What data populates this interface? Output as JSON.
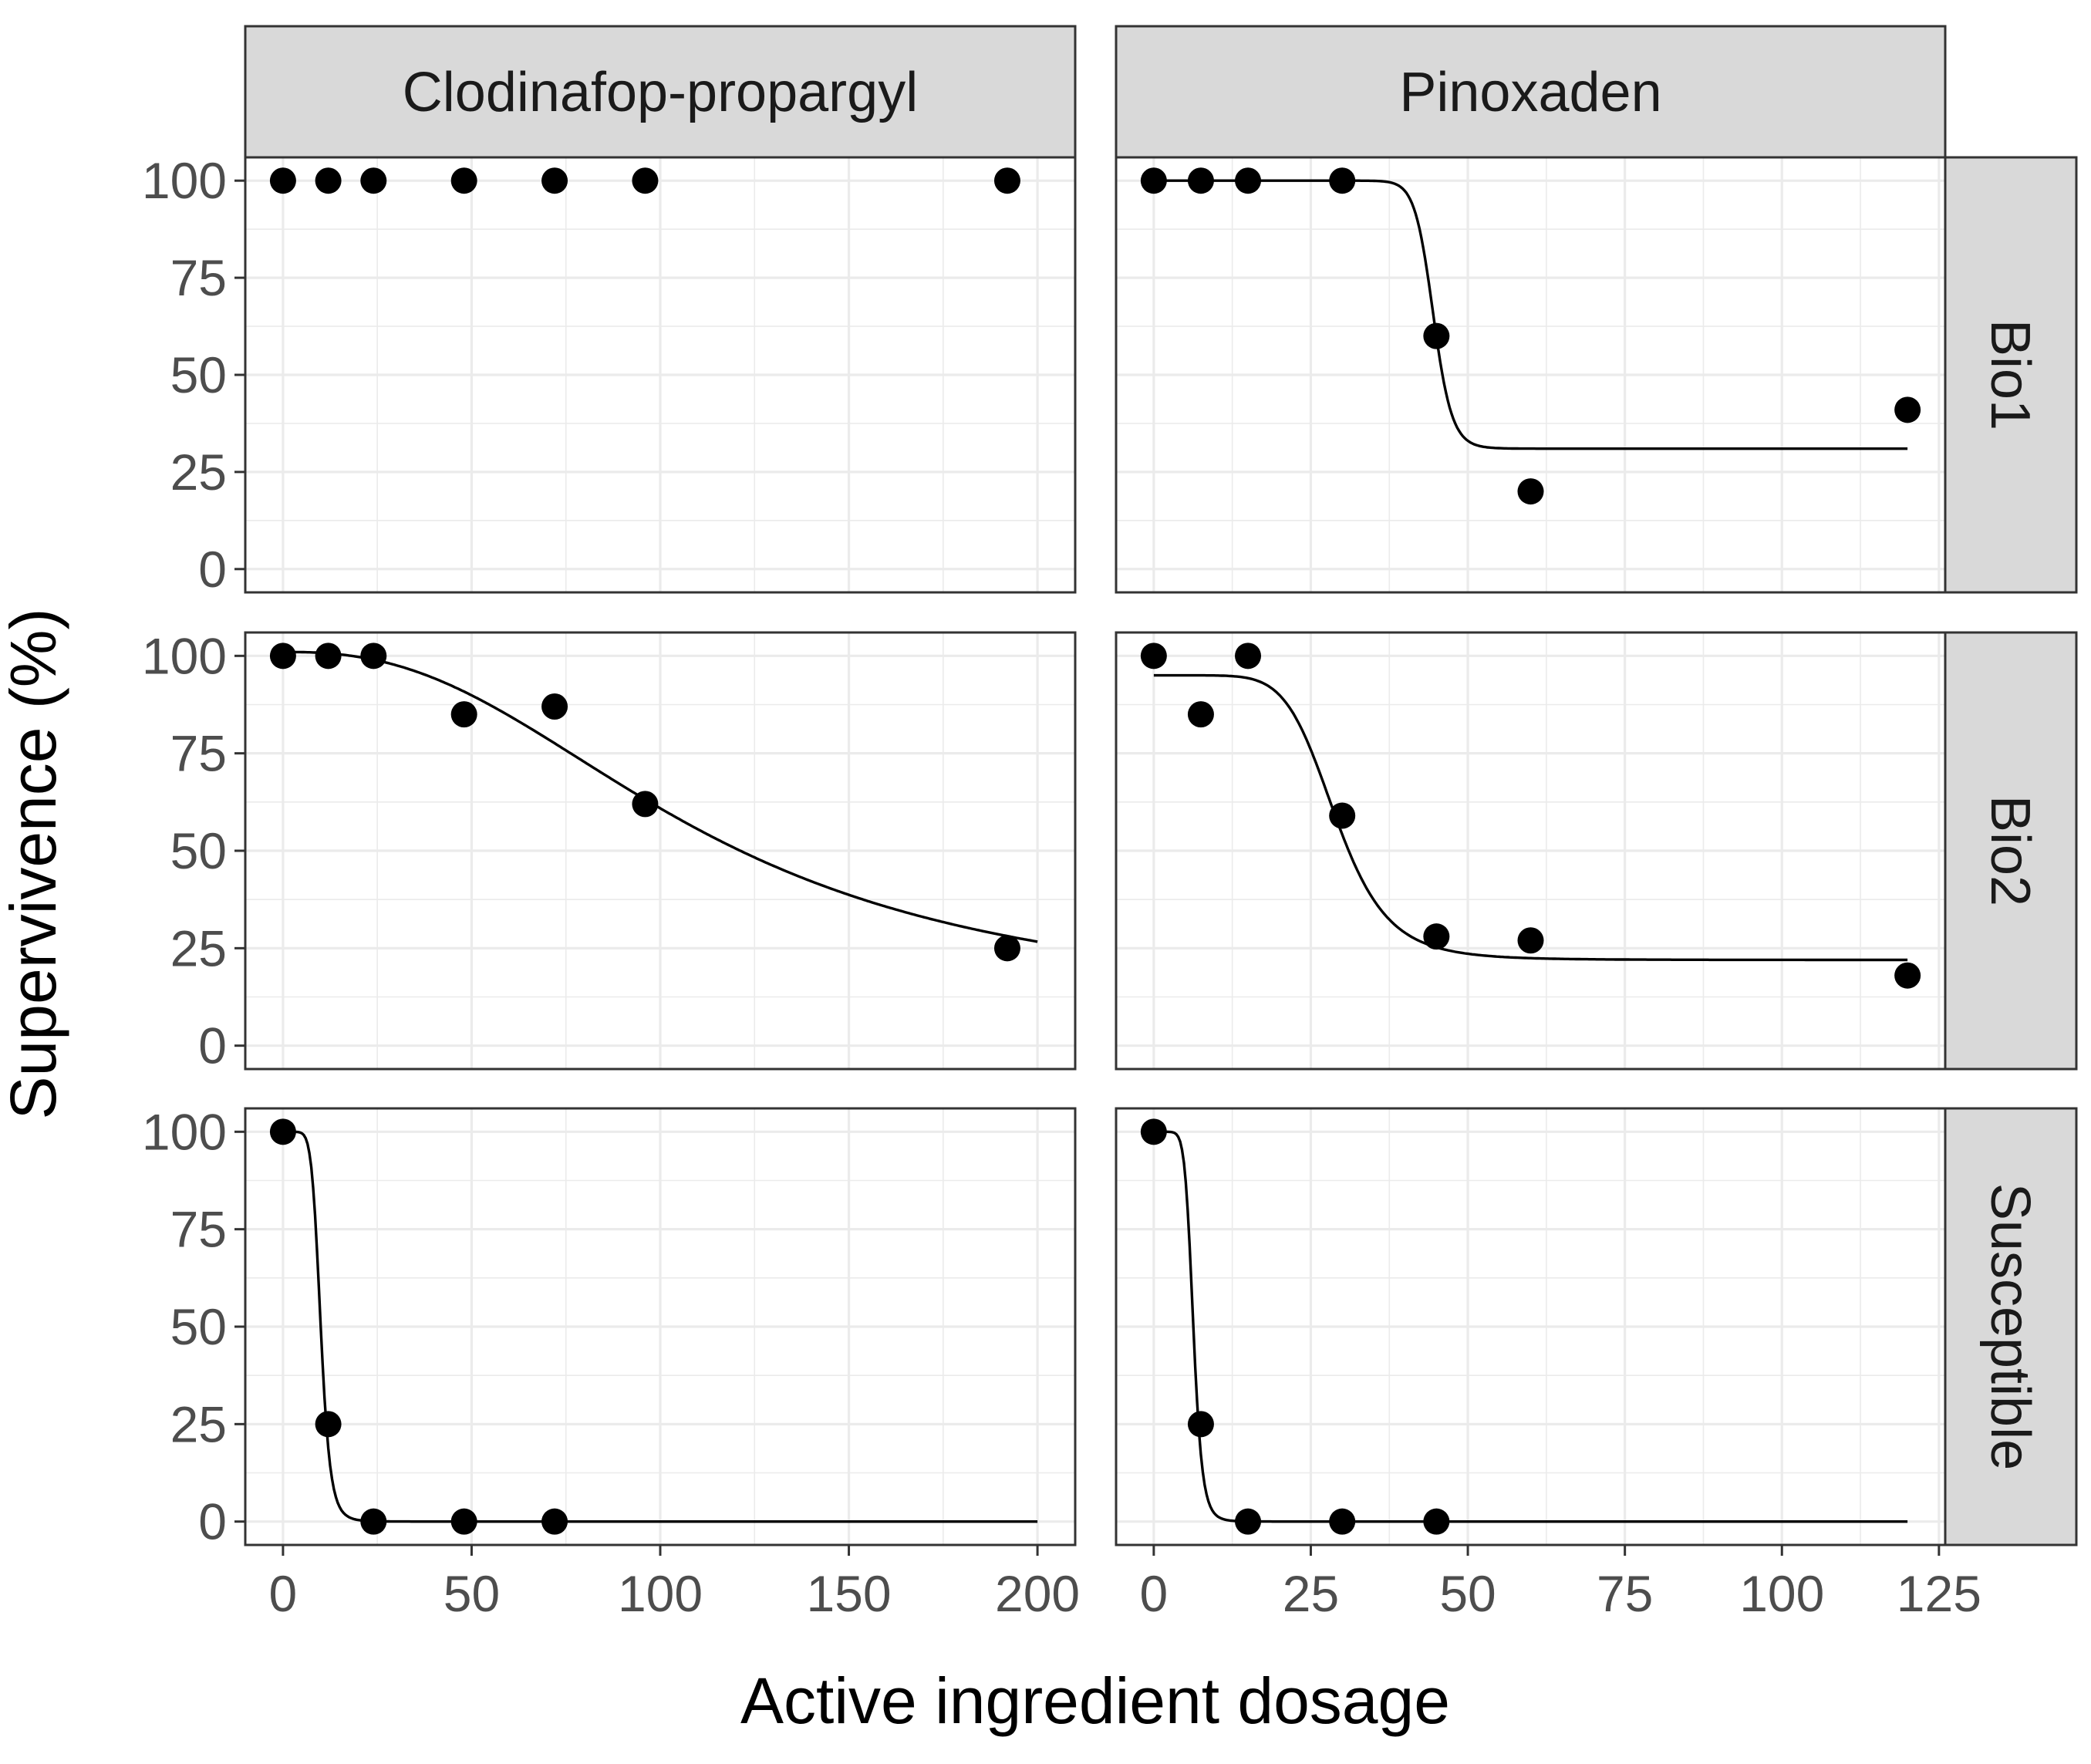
{
  "chart_data": {
    "type": "scatter",
    "xlabel": "Active ingredient dosage",
    "ylabel": "Supervivence (%)",
    "ylim": [
      0,
      100
    ],
    "y_ticks": [
      0,
      25,
      50,
      75,
      100
    ],
    "columns": [
      {
        "name": "Clodinafop-propargyl",
        "xlim": [
          -10,
          210
        ],
        "x_ticks": [
          0,
          50,
          100,
          150,
          200
        ],
        "curve_max_x": 200
      },
      {
        "name": "Pinoxaden",
        "xlim": [
          -6,
          126
        ],
        "x_ticks": [
          0,
          25,
          50,
          75,
          100,
          125
        ],
        "curve_max_x": 120
      }
    ],
    "rows": [
      "Bio1",
      "Bio2",
      "Susceptible"
    ],
    "panels": [
      {
        "col": "Clodinafop-propargyl",
        "row": "Bio1",
        "points": [
          [
            0,
            100
          ],
          [
            12,
            100
          ],
          [
            24,
            100
          ],
          [
            48,
            100
          ],
          [
            72,
            100
          ],
          [
            96,
            100
          ],
          [
            192,
            100
          ]
        ],
        "fit": null
      },
      {
        "col": "Pinoxaden",
        "row": "Bio1",
        "points": [
          [
            0,
            100
          ],
          [
            7.5,
            100
          ],
          [
            15,
            100
          ],
          [
            30,
            100
          ],
          [
            45,
            60
          ],
          [
            60,
            20
          ],
          [
            120,
            41
          ]
        ],
        "fit": {
          "b": 30,
          "c": 31,
          "d": 100,
          "e": 44.5
        }
      },
      {
        "col": "Clodinafop-propargyl",
        "row": "Bio2",
        "points": [
          [
            0,
            100
          ],
          [
            12,
            100
          ],
          [
            24,
            100
          ],
          [
            48,
            85
          ],
          [
            72,
            87
          ],
          [
            96,
            62
          ],
          [
            192,
            25
          ]
        ],
        "fit": {
          "b": 2.5,
          "c": 10,
          "d": 101,
          "e": 110
        }
      },
      {
        "col": "Pinoxaden",
        "row": "Bio2",
        "points": [
          [
            0,
            100
          ],
          [
            7.5,
            85
          ],
          [
            15,
            100
          ],
          [
            30,
            59
          ],
          [
            45,
            28
          ],
          [
            60,
            27
          ],
          [
            120,
            18
          ]
        ],
        "fit": {
          "b": 7,
          "c": 22,
          "d": 95,
          "e": 29
        }
      },
      {
        "col": "Clodinafop-propargyl",
        "row": "Susceptible",
        "points": [
          [
            0,
            100
          ],
          [
            12,
            25
          ],
          [
            24,
            0
          ],
          [
            48,
            0
          ],
          [
            72,
            0
          ]
        ],
        "fit": {
          "b": 8,
          "c": 0,
          "d": 100,
          "e": 10
        }
      },
      {
        "col": "Pinoxaden",
        "row": "Susceptible",
        "points": [
          [
            0,
            100
          ],
          [
            7.5,
            25
          ],
          [
            15,
            0
          ],
          [
            30,
            0
          ],
          [
            45,
            0
          ]
        ],
        "fit": {
          "b": 9,
          "c": 0,
          "d": 100,
          "e": 6.3
        }
      }
    ]
  }
}
